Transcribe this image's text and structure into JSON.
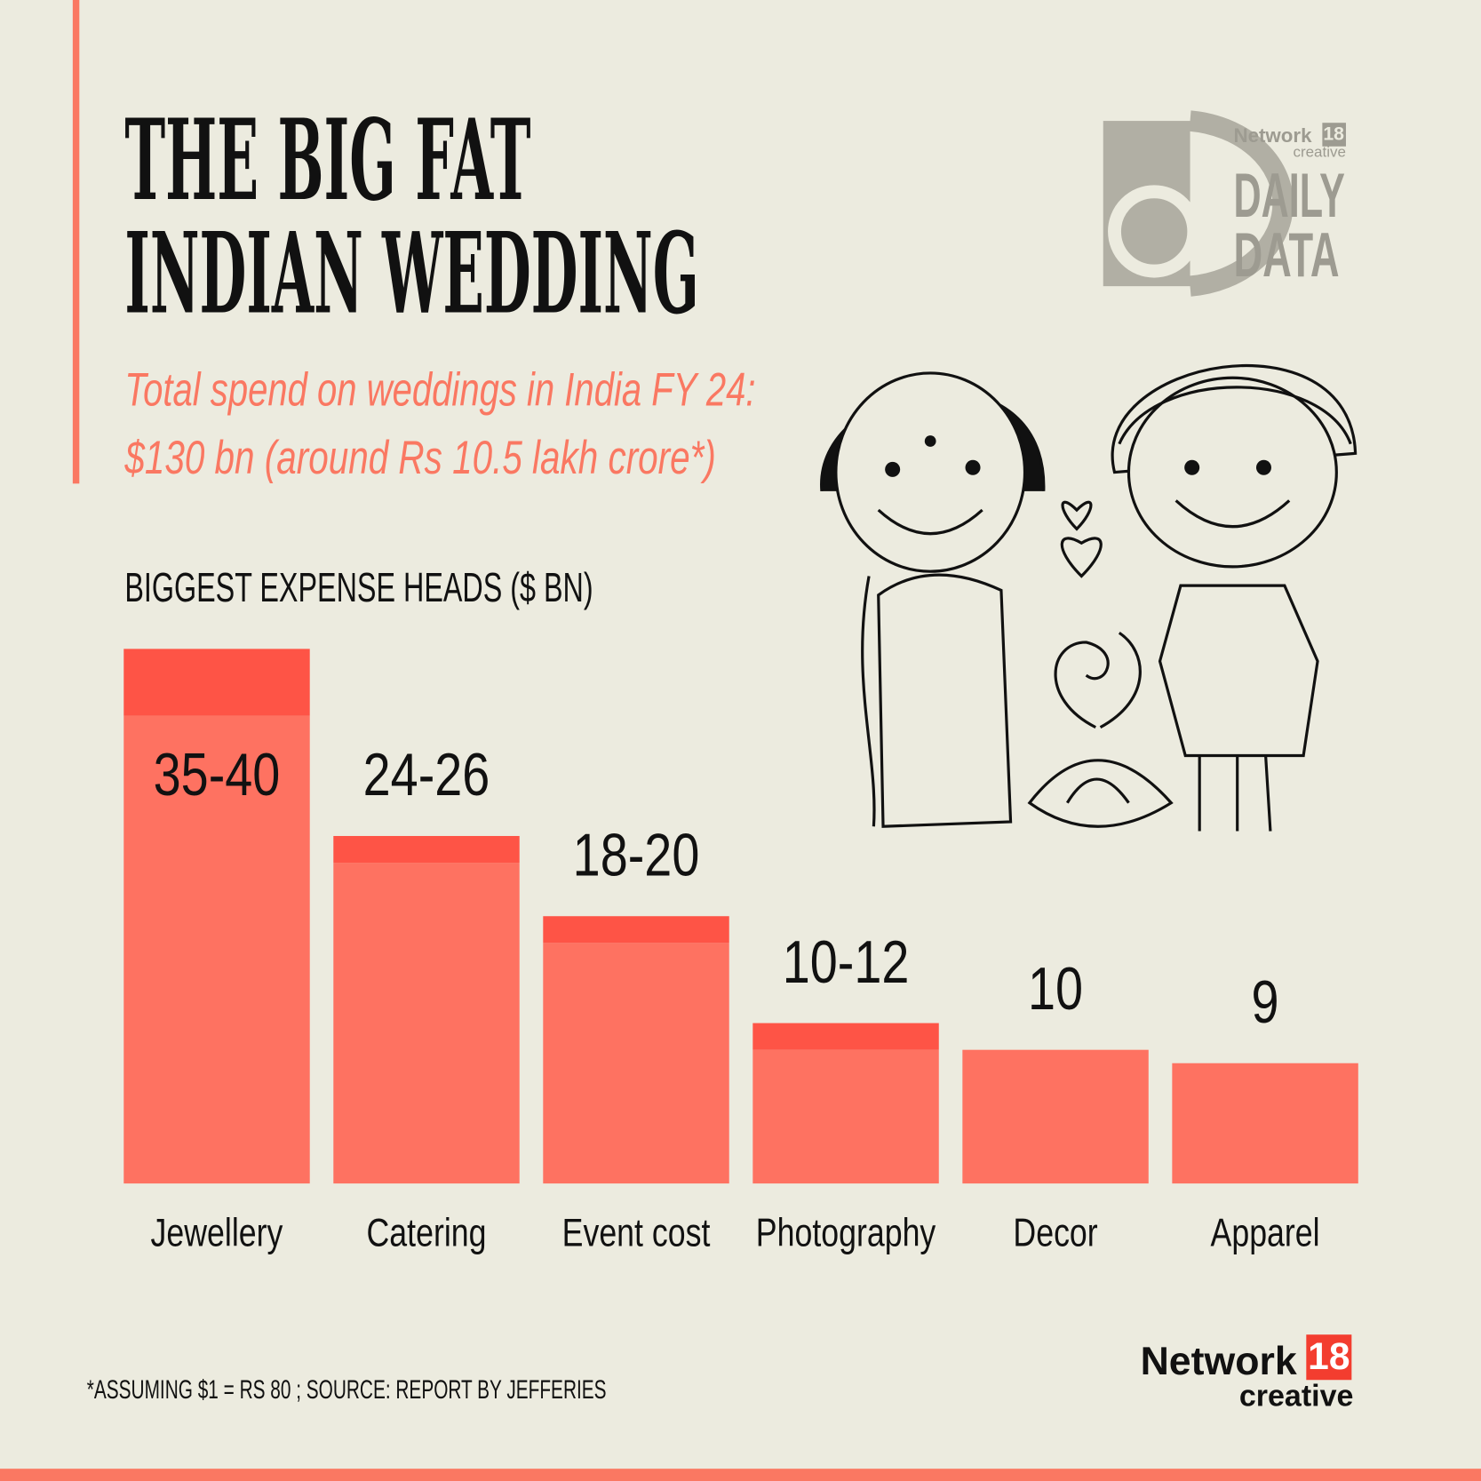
{
  "chart_data": {
    "type": "bar",
    "title_lines": [
      "THE BIG FAT",
      "INDIAN WEDDING"
    ],
    "subtitle_lines": [
      "Total spend on weddings in India FY 24:",
      "$130 bn (around Rs 10.5 lakh crore*)"
    ],
    "chart_label": "BIGGEST EXPENSE HEADS ($ BN)",
    "categories": [
      "Jewellery",
      "Catering",
      "Event cost",
      "Photography",
      "Decor",
      "Apparel"
    ],
    "values": [
      35,
      24,
      18,
      10,
      10,
      9
    ],
    "values_high": [
      40,
      26,
      20,
      12,
      null,
      null
    ],
    "value_labels": [
      "35-40",
      "24-26",
      "18-20",
      "10-12",
      "10",
      "9"
    ],
    "color": "#fe7261",
    "range_color": "#fe5446",
    "footnote": "*ASSUMING $1 = RS 80 ;  SOURCE: REPORT BY JEFFERIES",
    "logo": {
      "network": "Network",
      "number": "18",
      "creative": "creative",
      "line1": "DAILY",
      "line2": "DATA"
    },
    "footer_logo": {
      "network": "Network",
      "number": "18",
      "creative": "creative"
    }
  }
}
